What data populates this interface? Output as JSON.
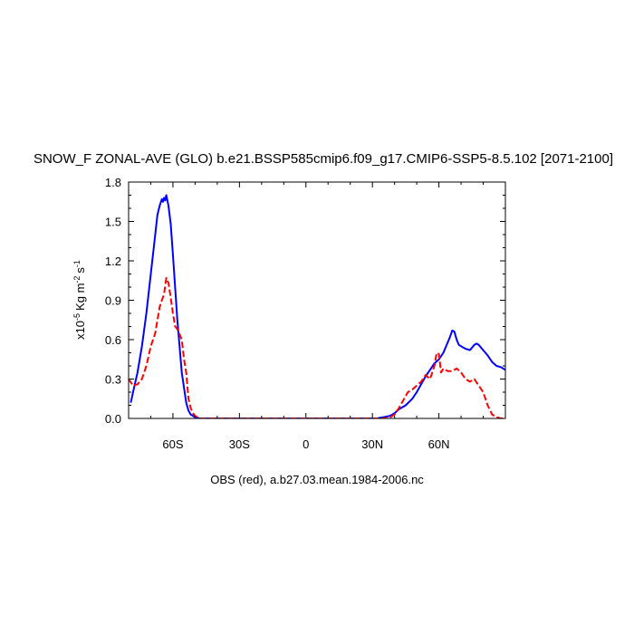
{
  "chart_data": {
    "type": "line",
    "title": "SNOW_F ZONAL-AVE (GLO) b.e21.BSSP585cmip6.f09_g17.CMIP6-SSP5-8.5.102 [2071-2100]",
    "xlabel": "OBS (red), a.b27.03.mean.1984-2006.nc",
    "ylabel_prefix": "x10",
    "ylabel_exp": "-5",
    "ylabel_unit": "Kg m",
    "ylabel_unit_exp": "-2",
    "ylabel_unit2": "s",
    "ylabel_unit2_exp": "-1",
    "xlim": [
      -80,
      90
    ],
    "ylim": [
      0,
      1.8
    ],
    "xticks": [
      {
        "value": -60,
        "label": "60S"
      },
      {
        "value": -30,
        "label": "30S"
      },
      {
        "value": 0,
        "label": "0"
      },
      {
        "value": 30,
        "label": "30N"
      },
      {
        "value": 60,
        "label": "60N"
      }
    ],
    "yticks": [
      {
        "value": 0,
        "label": "0.0"
      },
      {
        "value": 0.3,
        "label": "0.3"
      },
      {
        "value": 0.6,
        "label": "0.6"
      },
      {
        "value": 0.9,
        "label": "0.9"
      },
      {
        "value": 1.2,
        "label": "1.2"
      },
      {
        "value": 1.5,
        "label": "1.5"
      },
      {
        "value": 1.8,
        "label": "1.8"
      }
    ],
    "series": [
      {
        "color": "#0000ff",
        "dash": "solid",
        "x": [
          -79,
          -78,
          -76,
          -74,
          -72,
          -70,
          -68,
          -67,
          -66,
          -65,
          -64.5,
          -64,
          -63.5,
          -63,
          -62,
          -61,
          -60,
          -58,
          -56,
          -54,
          -53,
          -52,
          -50,
          -48,
          -45,
          -40,
          0,
          30,
          32,
          35,
          38,
          40,
          42,
          45,
          48,
          50,
          52,
          54,
          56,
          58,
          60,
          62,
          64,
          65,
          66,
          67,
          68,
          69,
          70,
          72,
          74,
          76,
          77,
          78,
          80,
          82,
          84,
          86,
          88,
          90
        ],
        "y": [
          0.12,
          0.2,
          0.35,
          0.55,
          0.8,
          1.1,
          1.4,
          1.55,
          1.62,
          1.67,
          1.65,
          1.68,
          1.66,
          1.7,
          1.62,
          1.48,
          1.25,
          0.75,
          0.35,
          0.12,
          0.06,
          0.03,
          0.01,
          0.0,
          0.0,
          0.0,
          0.0,
          0.0,
          0.0,
          0.01,
          0.02,
          0.04,
          0.07,
          0.1,
          0.15,
          0.2,
          0.26,
          0.32,
          0.37,
          0.42,
          0.45,
          0.5,
          0.58,
          0.62,
          0.67,
          0.66,
          0.6,
          0.56,
          0.55,
          0.53,
          0.52,
          0.56,
          0.57,
          0.56,
          0.52,
          0.48,
          0.43,
          0.4,
          0.39,
          0.37
        ]
      },
      {
        "color": "#ff0000",
        "dash": "dashed",
        "x": [
          -80,
          -78,
          -76,
          -74,
          -72,
          -70,
          -68,
          -66,
          -64,
          -63,
          -62,
          -61,
          -60,
          -59,
          -58,
          -57,
          -56,
          -55,
          -54,
          -53,
          -52,
          -51,
          -50,
          -48,
          -45,
          -40,
          0,
          35,
          38,
          40,
          42,
          44,
          46,
          48,
          50,
          52,
          54,
          56,
          58,
          59,
          60,
          61,
          62,
          64,
          66,
          68,
          70,
          72,
          74,
          76,
          78,
          80,
          82,
          84,
          86,
          88,
          90
        ],
        "y": [
          0.3,
          0.25,
          0.26,
          0.3,
          0.4,
          0.55,
          0.65,
          0.85,
          0.95,
          1.07,
          1.03,
          0.92,
          0.8,
          0.7,
          0.68,
          0.64,
          0.6,
          0.45,
          0.35,
          0.15,
          0.08,
          0.04,
          0.02,
          0.0,
          0.0,
          0.0,
          0.0,
          0.0,
          0.01,
          0.03,
          0.08,
          0.14,
          0.2,
          0.22,
          0.25,
          0.28,
          0.33,
          0.3,
          0.4,
          0.5,
          0.49,
          0.35,
          0.38,
          0.36,
          0.36,
          0.38,
          0.35,
          0.3,
          0.28,
          0.3,
          0.25,
          0.2,
          0.1,
          0.03,
          0.01,
          0.0,
          0.0
        ]
      }
    ]
  }
}
